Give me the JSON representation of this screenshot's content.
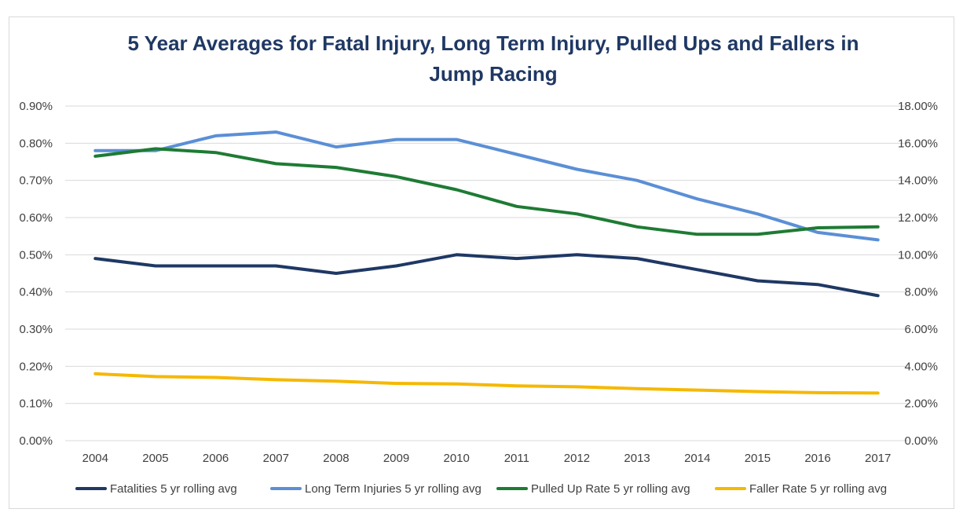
{
  "chart_data": {
    "type": "line",
    "title_lines": [
      "5 Year Averages for Fatal Injury, Long Term Injury, Pulled Ups and Fallers in",
      "Jump Racing"
    ],
    "categories": [
      "2004",
      "2005",
      "2006",
      "2007",
      "2008",
      "2009",
      "2010",
      "2011",
      "2012",
      "2013",
      "2014",
      "2015",
      "2016",
      "2017"
    ],
    "y_left": {
      "min": 0,
      "max": 0.9,
      "ticks": [
        "0.00%",
        "0.10%",
        "0.20%",
        "0.30%",
        "0.40%",
        "0.50%",
        "0.60%",
        "0.70%",
        "0.80%",
        "0.90%"
      ]
    },
    "y_right": {
      "min": 0,
      "max": 18,
      "ticks": [
        "0.00%",
        "2.00%",
        "4.00%",
        "6.00%",
        "8.00%",
        "10.00%",
        "12.00%",
        "14.00%",
        "16.00%",
        "18.00%"
      ]
    },
    "grid": true,
    "legend_position": "bottom",
    "series": [
      {
        "name": "Fatalities 5 yr rolling avg",
        "axis": "left",
        "color": "#1f3864",
        "values": [
          0.49,
          0.47,
          0.47,
          0.47,
          0.45,
          0.47,
          0.5,
          0.49,
          0.5,
          0.49,
          0.46,
          0.43,
          0.42,
          0.39
        ]
      },
      {
        "name": "Long Term Injuries 5 yr rolling avg",
        "axis": "left",
        "color": "#5b8fd6",
        "values": [
          0.78,
          0.78,
          0.82,
          0.83,
          0.79,
          0.81,
          0.81,
          0.77,
          0.73,
          0.7,
          0.65,
          0.61,
          0.56,
          0.54
        ]
      },
      {
        "name": "Pulled Up Rate 5 yr rolling avg",
        "axis": "right",
        "color": "#1e7b34",
        "values": [
          15.3,
          15.7,
          15.5,
          14.9,
          14.7,
          14.2,
          13.5,
          12.6,
          12.2,
          11.5,
          11.1,
          11.1,
          11.45,
          11.5
        ]
      },
      {
        "name": "Faller Rate 5 yr rolling avg",
        "axis": "right",
        "color": "#f5b800",
        "values": [
          3.6,
          3.45,
          3.4,
          3.28,
          3.2,
          3.08,
          3.05,
          2.95,
          2.9,
          2.8,
          2.72,
          2.64,
          2.58,
          2.56
        ]
      }
    ]
  }
}
